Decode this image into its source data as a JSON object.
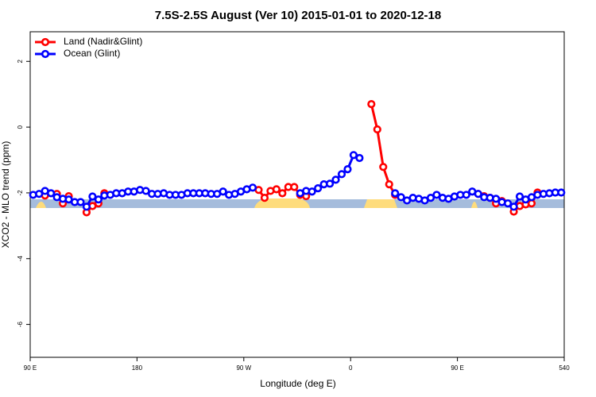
{
  "chart_data": {
    "type": "line",
    "title": "7.5S-2.5S August (Ver 10)   2015-01-01 to 2020-12-18",
    "x_label": "Longitude (deg E)",
    "y_label": "XCO2 - MLO trend (ppm)",
    "x": [
      92.5,
      97.5,
      102.5,
      107.5,
      112.5,
      117.5,
      122.5,
      127.5,
      132.5,
      137.5,
      142.5,
      147.5,
      152.5,
      157.5,
      162.5,
      167.5,
      172.5,
      177.5,
      182.5,
      187.5,
      192.5,
      197.5,
      202.5,
      207.5,
      212.5,
      217.5,
      222.5,
      227.5,
      232.5,
      237.5,
      242.5,
      247.5,
      252.5,
      257.5,
      262.5,
      267.5,
      272.5,
      277.5,
      282.5,
      287.5,
      292.5,
      297.5,
      302.5,
      307.5,
      312.5,
      317.5,
      322.5,
      327.5,
      332.5,
      337.5,
      342.5,
      347.5,
      352.5,
      357.5,
      362.5,
      367.5,
      372.5,
      377.5,
      382.5,
      387.5,
      392.5,
      397.5,
      402.5,
      407.5,
      412.5,
      417.5,
      422.5,
      427.5,
      432.5,
      437.5,
      442.5,
      447.5,
      452.5,
      457.5,
      462.5,
      467.5,
      472.5,
      477.5,
      482.5,
      487.5,
      492.5,
      497.5,
      502.5,
      507.5,
      512.5,
      517.5,
      522.5,
      527.5,
      532.5,
      537.5
    ],
    "series": [
      {
        "name": "Land (Nadir&Glint)",
        "color": "#ff0000",
        "values": [
          null,
          null,
          -2.08,
          null,
          -2.03,
          -2.32,
          -2.1,
          null,
          null,
          -2.59,
          -2.4,
          -2.32,
          -2.01,
          null,
          null,
          null,
          null,
          null,
          null,
          null,
          null,
          null,
          null,
          null,
          null,
          null,
          null,
          null,
          null,
          null,
          null,
          null,
          null,
          null,
          null,
          null,
          null,
          null,
          -1.91,
          -2.15,
          -1.94,
          -1.89,
          -2.01,
          -1.82,
          -1.82,
          -2.06,
          -2.1,
          null,
          null,
          null,
          null,
          null,
          null,
          null,
          null,
          null,
          null,
          0.7,
          -0.07,
          -1.21,
          -1.74,
          -2.06,
          null,
          null,
          null,
          null,
          null,
          null,
          null,
          null,
          null,
          null,
          null,
          null,
          null,
          -2.03,
          -2.1,
          -2.15,
          -2.32,
          -2.25,
          null,
          -2.57,
          -2.4,
          -2.35,
          -2.32,
          -1.99,
          null,
          null,
          null,
          null
        ]
      },
      {
        "name": "Ocean (Glint)",
        "color": "#0000ff",
        "values": [
          -2.06,
          -2.03,
          -1.94,
          -2.01,
          -2.13,
          -2.18,
          -2.2,
          -2.28,
          -2.28,
          -2.42,
          -2.11,
          -2.2,
          -2.08,
          -2.06,
          -2.01,
          -2.01,
          -1.96,
          -1.96,
          -1.91,
          -1.94,
          -2.03,
          -2.03,
          -2.01,
          -2.06,
          -2.06,
          -2.06,
          -2.01,
          -2.01,
          -2.01,
          -2.01,
          -2.03,
          -2.03,
          -1.96,
          -2.06,
          -2.03,
          -1.96,
          -1.89,
          -1.84,
          null,
          null,
          null,
          null,
          null,
          null,
          null,
          -2.01,
          -1.94,
          -1.96,
          -1.86,
          -1.74,
          -1.72,
          -1.6,
          -1.43,
          -1.28,
          -0.85,
          -0.94,
          null,
          null,
          null,
          null,
          null,
          -2.01,
          -2.13,
          -2.23,
          -2.15,
          -2.18,
          -2.23,
          -2.15,
          -2.06,
          -2.15,
          -2.18,
          -2.11,
          -2.06,
          -2.06,
          -1.96,
          -2.03,
          -2.13,
          -2.15,
          -2.18,
          -2.28,
          -2.32,
          -2.42,
          -2.11,
          -2.2,
          -2.13,
          -2.06,
          -2.03,
          -2.01,
          -1.99,
          -1.99
        ]
      }
    ],
    "xlim": [
      90,
      540
    ],
    "ylim": [
      -7,
      2.9
    ],
    "xticks": [
      {
        "value": 90,
        "label": "90 E"
      },
      180,
      {
        "value": 270,
        "label": "90 W"
      },
      {
        "value": 360,
        "label": "0"
      },
      {
        "value": 450,
        "label": "90 E"
      },
      540
    ],
    "yticks": [
      -6,
      -4,
      -2,
      0,
      2
    ],
    "legend": "top-left"
  }
}
